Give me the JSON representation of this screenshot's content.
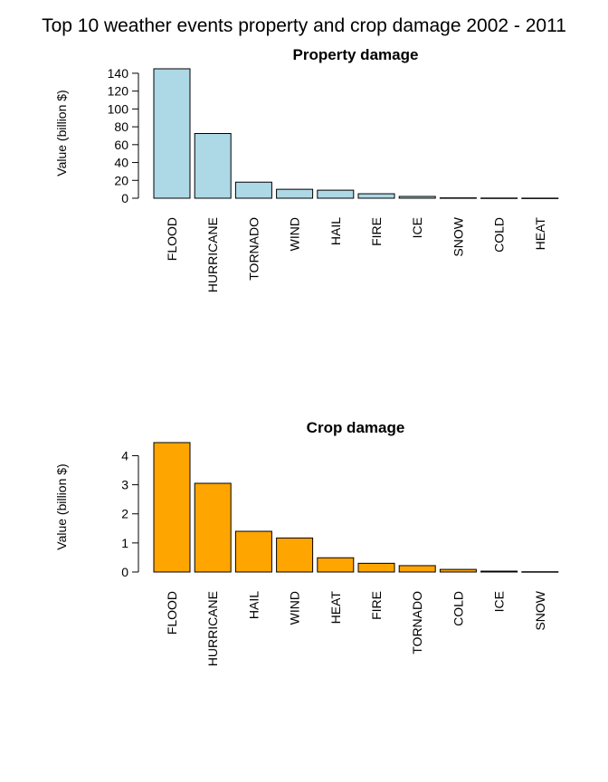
{
  "figure": {
    "title": "Top 10 weather events property and crop damage 2002 - 2011"
  },
  "chart_data": [
    {
      "type": "bar",
      "title": "Property damage",
      "xlabel": "",
      "ylabel": "Value (billion $)",
      "ylim": [
        0,
        145
      ],
      "yticks": [
        0,
        20,
        40,
        60,
        80,
        100,
        120,
        140
      ],
      "bar_color": "#add8e6",
      "categories": [
        "FLOOD",
        "HURRICANE",
        "TORNADO",
        "WIND",
        "HAIL",
        "FIRE",
        "ICE",
        "SNOW",
        "COLD",
        "HEAT"
      ],
      "values": [
        145,
        72.5,
        18,
        10,
        9,
        5,
        2,
        0.4,
        0.2,
        0.1
      ]
    },
    {
      "type": "bar",
      "title": "Crop damage",
      "xlabel": "",
      "ylabel": "Value (billion $)",
      "ylim": [
        0,
        4.45
      ],
      "yticks": [
        0,
        1,
        2,
        3,
        4
      ],
      "bar_color": "#ffa500",
      "categories": [
        "FLOOD",
        "HURRICANE",
        "HAIL",
        "WIND",
        "HEAT",
        "FIRE",
        "TORNADO",
        "COLD",
        "ICE",
        "SNOW"
      ],
      "values": [
        4.45,
        3.05,
        1.4,
        1.17,
        0.49,
        0.3,
        0.22,
        0.09,
        0.03,
        0.01
      ]
    }
  ]
}
